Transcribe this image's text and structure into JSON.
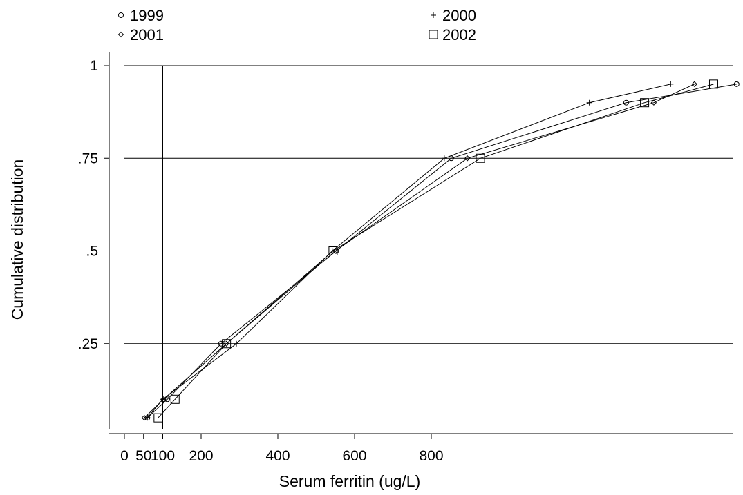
{
  "chart_data": {
    "type": "line",
    "xlabel": "Serum ferritin (ug/L)",
    "ylabel": "Cumulative distribution",
    "xlim": [
      -5,
      805
    ],
    "ylim": [
      0,
      1
    ],
    "x_ticks": [
      {
        "value": 0,
        "label": "0"
      },
      {
        "value": 25,
        "label": "50"
      },
      {
        "value": 50,
        "label": "100"
      },
      {
        "value": 100,
        "label": "200"
      },
      {
        "value": 200,
        "label": "400"
      },
      {
        "value": 300,
        "label": "600"
      },
      {
        "value": 400,
        "label": "800"
      }
    ],
    "y_ticks": [
      {
        "value": 0.25,
        "label": ".25"
      },
      {
        "value": 0.5,
        "label": ".5"
      },
      {
        "value": 0.75,
        "label": ".75"
      },
      {
        "value": 1,
        "label": "1"
      }
    ],
    "grid": {
      "horizontal": true,
      "reference_x": 50
    },
    "legend": {
      "position": "top",
      "columns": 2
    },
    "series": [
      {
        "name": "1999",
        "marker": "circle",
        "points": [
          [
            30,
            0.05
          ],
          [
            56,
            0.1
          ],
          [
            126,
            0.25
          ],
          [
            276,
            0.5
          ],
          [
            426,
            0.75
          ],
          [
            654,
            0.9
          ],
          [
            798,
            0.95
          ]
        ]
      },
      {
        "name": "2000",
        "marker": "plus",
        "points": [
          [
            30,
            0.05
          ],
          [
            50,
            0.1
          ],
          [
            146,
            0.25
          ],
          [
            271,
            0.5
          ],
          [
            417,
            0.75
          ],
          [
            606,
            0.9
          ],
          [
            712,
            0.95
          ]
        ]
      },
      {
        "name": "2001",
        "marker": "diamond",
        "points": [
          [
            26,
            0.05
          ],
          [
            51,
            0.1
          ],
          [
            133,
            0.25
          ],
          [
            275,
            0.5
          ],
          [
            447,
            0.75
          ],
          [
            690,
            0.9
          ],
          [
            743,
            0.95
          ]
        ]
      },
      {
        "name": "2002",
        "marker": "square",
        "points": [
          [
            44,
            0.05
          ],
          [
            66,
            0.1
          ],
          [
            133,
            0.25
          ],
          [
            272,
            0.5
          ],
          [
            464,
            0.75
          ],
          [
            678,
            0.9
          ],
          [
            768,
            0.95
          ]
        ]
      }
    ]
  }
}
